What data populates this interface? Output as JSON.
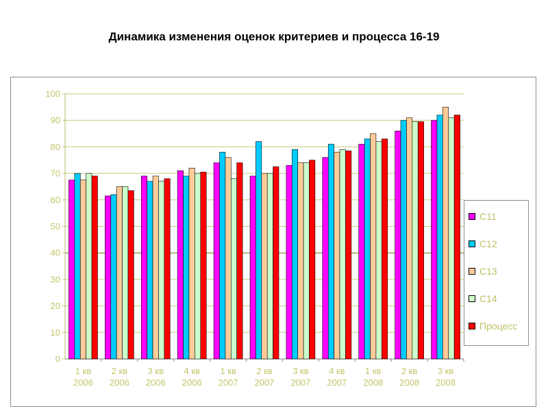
{
  "title": "Динамика изменения оценок критериев и процесса 16-19",
  "chart_data": {
    "type": "bar",
    "title": "Динамика изменения оценок критериев и процесса 16-19",
    "categories": [
      [
        "1 кв",
        "2006"
      ],
      [
        "2 кв",
        "2006"
      ],
      [
        "3 кв",
        "2006"
      ],
      [
        "4 кв",
        "2006"
      ],
      [
        "1 кв",
        "2007"
      ],
      [
        "2 кв",
        "2007"
      ],
      [
        "3 кв",
        "2007"
      ],
      [
        "4 кв",
        "2007"
      ],
      [
        "1 кв",
        "2008"
      ],
      [
        "2 кв",
        "2008"
      ],
      [
        "3 кв",
        "2008"
      ]
    ],
    "ylim": [
      0,
      100
    ],
    "yticks": [
      "0",
      "10",
      "20",
      "30",
      "40",
      "50",
      "60",
      "70",
      "80",
      "90",
      "100"
    ],
    "grid": true,
    "legend_position": "right",
    "series": [
      {
        "name": "С11",
        "color": "#ff00ff",
        "values": [
          67.5,
          61.5,
          69,
          71,
          74,
          69,
          73,
          76,
          81,
          86,
          90
        ]
      },
      {
        "name": "С12",
        "color": "#00ccff",
        "values": [
          70,
          62,
          67,
          69,
          78,
          82,
          79,
          81,
          83,
          90,
          92
        ]
      },
      {
        "name": "С13",
        "color": "#ffcc99",
        "values": [
          67.5,
          65,
          69,
          72,
          76,
          70,
          74,
          78,
          85,
          91,
          95
        ]
      },
      {
        "name": "С14",
        "color": "#ccffcc",
        "values": [
          70,
          65,
          67,
          70,
          68,
          70,
          74,
          79,
          82,
          89.5,
          91
        ]
      },
      {
        "name": "Процесс",
        "color": "#ff0000",
        "values": [
          69,
          63.5,
          68,
          70.5,
          74,
          72.5,
          75,
          78.5,
          83,
          89.5,
          92
        ]
      }
    ]
  }
}
